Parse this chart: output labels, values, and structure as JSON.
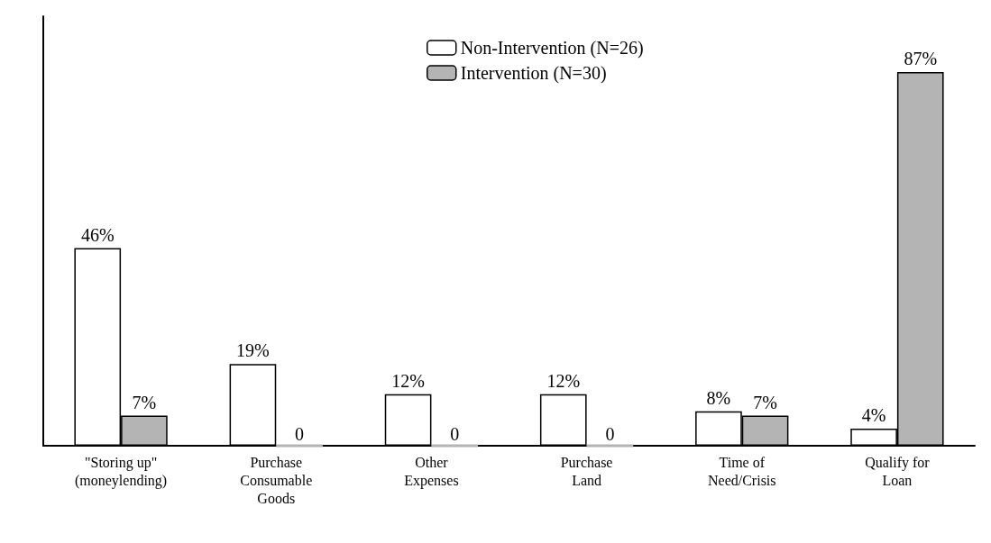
{
  "chart_data": {
    "type": "bar",
    "categories": [
      "\"Storing up\"\n(moneylending)",
      "Purchase\nConsumable\nGoods",
      "Other\nExpenses",
      "Purchase\nLand",
      "Time of\nNeed/Crisis",
      "Qualify for\nLoan"
    ],
    "series": [
      {
        "name": "Non-Intervention (N=26)",
        "color": "#ffffff",
        "values": [
          46,
          19,
          12,
          12,
          8,
          4
        ],
        "value_labels": [
          "46%",
          "19%",
          "12%",
          "12%",
          "8%",
          "4%"
        ]
      },
      {
        "name": "Intervention (N=30)",
        "color": "#b4b4b4",
        "values": [
          7,
          0,
          0,
          0,
          7,
          87
        ],
        "value_labels": [
          "7%",
          "0",
          "0",
          "0",
          "7%",
          "87%"
        ]
      }
    ],
    "legend": "top",
    "grid": false
  }
}
